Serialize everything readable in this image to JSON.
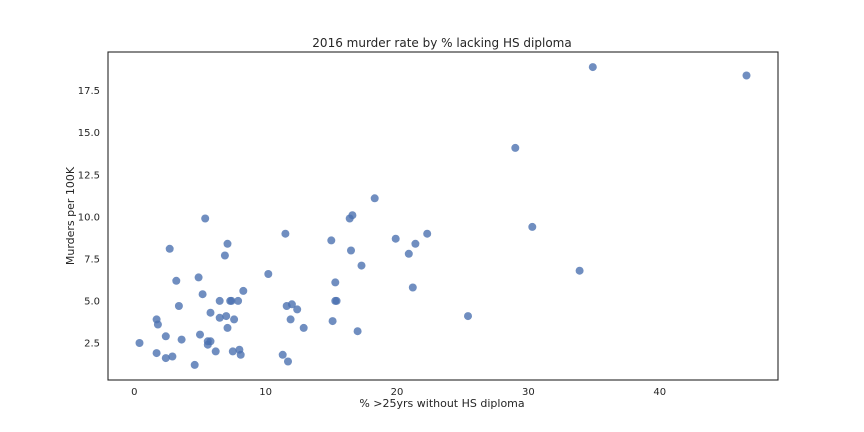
{
  "chart_data": {
    "type": "scatter",
    "title": "2016 murder rate by % lacking HS diploma",
    "xlabel": "% >25yrs without HS diploma",
    "ylabel": "Murders per 100K",
    "xlim": [
      -2,
      49
    ],
    "ylim": [
      0.3,
      19.8
    ],
    "xticks": [
      0,
      10,
      20,
      30,
      40
    ],
    "yticks": [
      2.5,
      5.0,
      7.5,
      10.0,
      12.5,
      15.0,
      17.5
    ],
    "xtick_labels": [
      "0",
      "10",
      "20",
      "30",
      "40"
    ],
    "ytick_labels": [
      "2.5",
      "5.0",
      "7.5",
      "10.0",
      "12.5",
      "15.0",
      "17.5"
    ],
    "grid": false,
    "marker_color": "#4c72b0",
    "points": [
      {
        "x": 0.4,
        "y": 2.5
      },
      {
        "x": 1.7,
        "y": 1.9
      },
      {
        "x": 1.7,
        "y": 3.9
      },
      {
        "x": 1.8,
        "y": 3.6
      },
      {
        "x": 2.4,
        "y": 1.6
      },
      {
        "x": 2.4,
        "y": 2.9
      },
      {
        "x": 2.7,
        "y": 8.1
      },
      {
        "x": 2.9,
        "y": 1.7
      },
      {
        "x": 3.2,
        "y": 6.2
      },
      {
        "x": 3.4,
        "y": 4.7
      },
      {
        "x": 3.6,
        "y": 2.7
      },
      {
        "x": 4.6,
        "y": 1.2
      },
      {
        "x": 4.9,
        "y": 6.4
      },
      {
        "x": 5.0,
        "y": 3.0
      },
      {
        "x": 5.2,
        "y": 5.4
      },
      {
        "x": 5.4,
        "y": 9.9
      },
      {
        "x": 5.6,
        "y": 2.4
      },
      {
        "x": 5.6,
        "y": 2.6
      },
      {
        "x": 5.8,
        "y": 2.6
      },
      {
        "x": 5.8,
        "y": 4.3
      },
      {
        "x": 6.2,
        "y": 2.0
      },
      {
        "x": 6.5,
        "y": 5.0
      },
      {
        "x": 6.5,
        "y": 4.0
      },
      {
        "x": 6.9,
        "y": 7.7
      },
      {
        "x": 7.0,
        "y": 4.1
      },
      {
        "x": 7.1,
        "y": 8.4
      },
      {
        "x": 7.1,
        "y": 3.4
      },
      {
        "x": 7.3,
        "y": 5.0
      },
      {
        "x": 7.4,
        "y": 5.0
      },
      {
        "x": 7.5,
        "y": 2.0
      },
      {
        "x": 7.6,
        "y": 3.9
      },
      {
        "x": 7.9,
        "y": 5.0
      },
      {
        "x": 8.0,
        "y": 2.1
      },
      {
        "x": 8.1,
        "y": 1.8
      },
      {
        "x": 8.3,
        "y": 5.6
      },
      {
        "x": 10.2,
        "y": 6.6
      },
      {
        "x": 11.3,
        "y": 1.8
      },
      {
        "x": 11.5,
        "y": 9.0
      },
      {
        "x": 11.6,
        "y": 4.7
      },
      {
        "x": 11.7,
        "y": 1.4
      },
      {
        "x": 11.9,
        "y": 3.9
      },
      {
        "x": 12.0,
        "y": 4.8
      },
      {
        "x": 12.4,
        "y": 4.5
      },
      {
        "x": 12.9,
        "y": 3.4
      },
      {
        "x": 15.0,
        "y": 8.6
      },
      {
        "x": 15.1,
        "y": 3.8
      },
      {
        "x": 15.3,
        "y": 6.1
      },
      {
        "x": 15.3,
        "y": 5.0
      },
      {
        "x": 15.4,
        "y": 5.0
      },
      {
        "x": 16.4,
        "y": 9.9
      },
      {
        "x": 16.5,
        "y": 8.0
      },
      {
        "x": 16.6,
        "y": 10.1
      },
      {
        "x": 17.0,
        "y": 3.2
      },
      {
        "x": 17.3,
        "y": 7.1
      },
      {
        "x": 18.3,
        "y": 11.1
      },
      {
        "x": 19.9,
        "y": 8.7
      },
      {
        "x": 20.9,
        "y": 7.8
      },
      {
        "x": 21.2,
        "y": 5.8
      },
      {
        "x": 21.4,
        "y": 8.4
      },
      {
        "x": 22.3,
        "y": 9.0
      },
      {
        "x": 25.4,
        "y": 4.1
      },
      {
        "x": 29.0,
        "y": 14.1
      },
      {
        "x": 30.3,
        "y": 9.4
      },
      {
        "x": 33.9,
        "y": 6.8
      },
      {
        "x": 34.9,
        "y": 18.9
      },
      {
        "x": 46.6,
        "y": 18.4
      }
    ]
  }
}
